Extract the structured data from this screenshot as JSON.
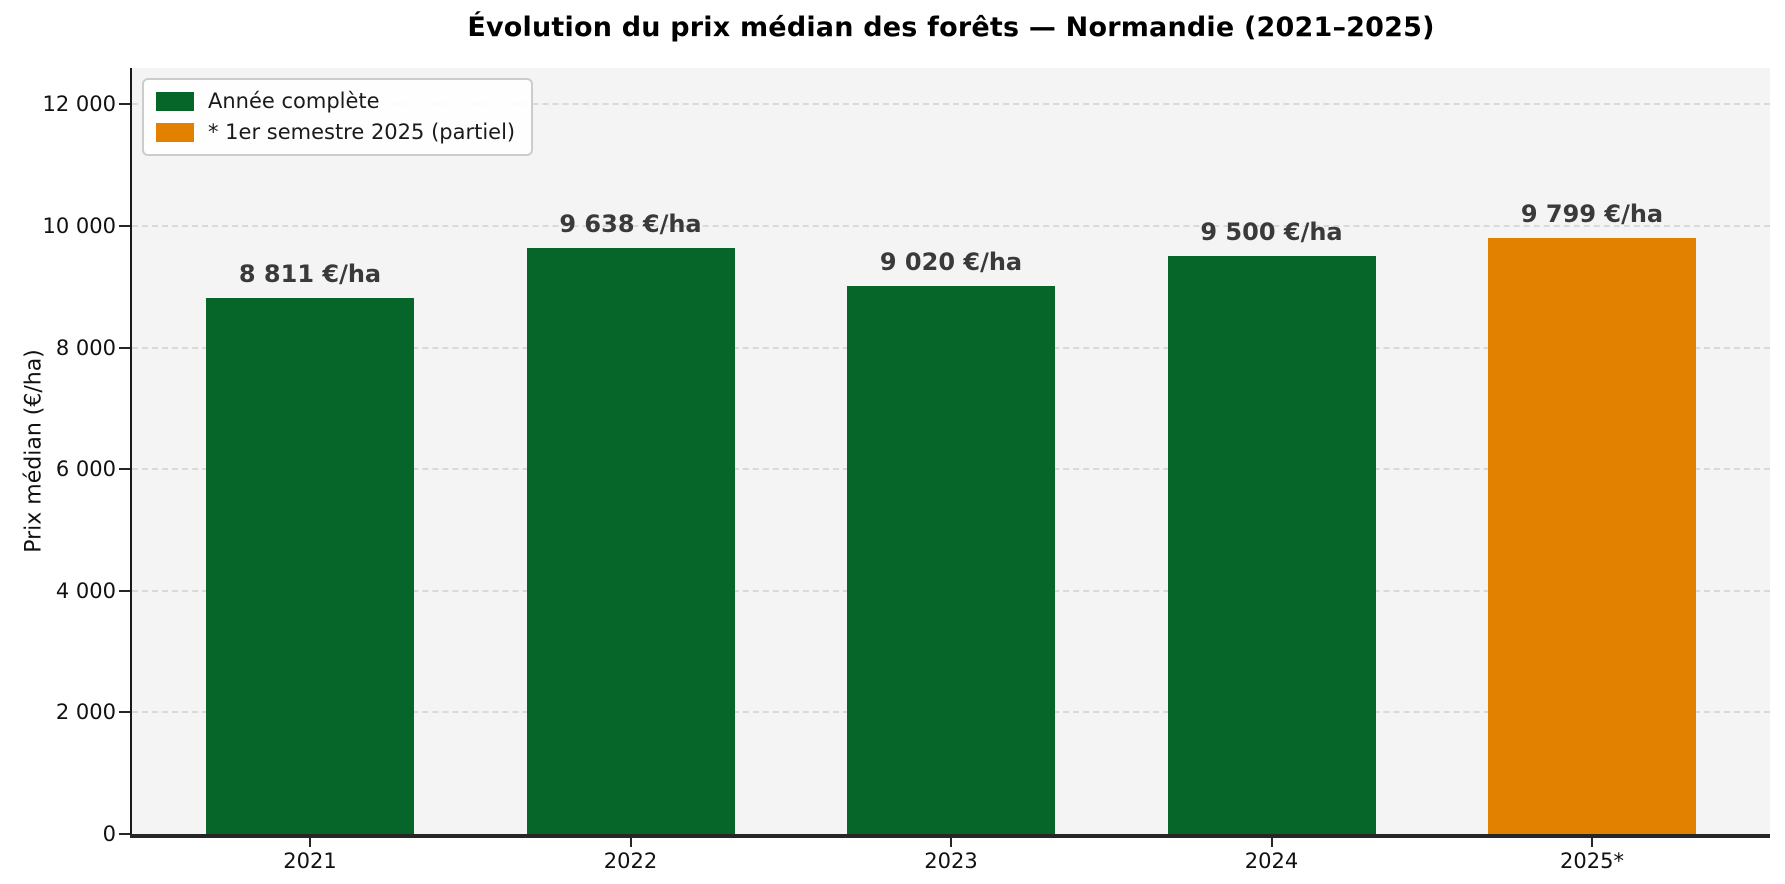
{
  "figure": {
    "background": "#ffffff",
    "plot_background": "#f4f4f4",
    "gridline_color": "#d9d9d9",
    "spine_color": "#262626",
    "value_label_color": "#3a3a3a"
  },
  "chart_data": {
    "type": "bar",
    "title": "Évolution du prix médian des forêts — Normandie (2021–2025)",
    "ylabel": "Prix médian (€/ha)",
    "xlabel": "",
    "categories": [
      "2021",
      "2022",
      "2023",
      "2024",
      "2025*"
    ],
    "values": [
      8811,
      9638,
      9020,
      9500,
      9799
    ],
    "bar_labels": [
      "8 811 €/ha",
      "9 638 €/ha",
      "9 020 €/ha",
      "9 500 €/ha",
      "9 799 €/ha"
    ],
    "bar_colors": [
      "#066629",
      "#066629",
      "#066629",
      "#066629",
      "#e28100"
    ],
    "ylim": [
      0,
      12600
    ],
    "yticks": [
      0,
      2000,
      4000,
      6000,
      8000,
      10000,
      12000
    ],
    "ytick_labels": [
      "0",
      "2 000",
      "4 000",
      "6 000",
      "8 000",
      "10 000",
      "12 000"
    ],
    "grid": "horizontal-dashed",
    "legend": {
      "position": "upper-left",
      "entries": [
        {
          "label": "Année complète",
          "color": "#066629"
        },
        {
          "label": "* 1er semestre 2025 (partiel)",
          "color": "#e28100"
        }
      ]
    }
  }
}
